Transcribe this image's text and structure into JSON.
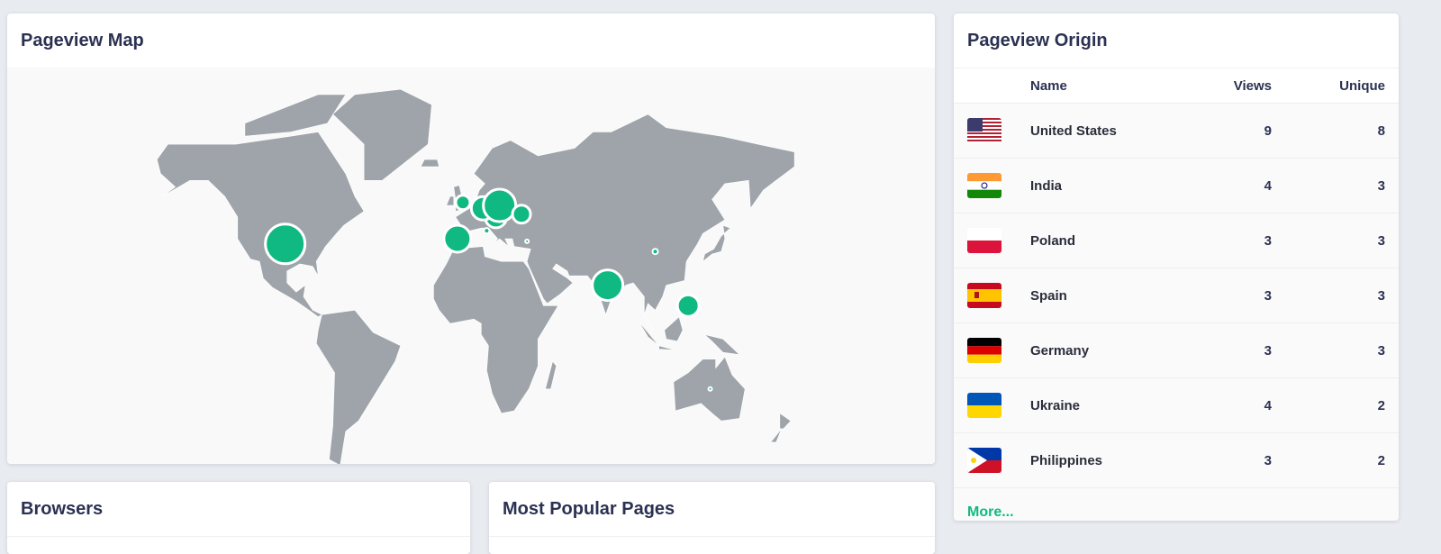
{
  "map": {
    "title": "Pageview Map",
    "land_color": "#9ea4aa",
    "bubble_color": "#10b981",
    "markers": [
      {
        "country": "United States",
        "views": 9
      },
      {
        "country": "India",
        "views": 4
      },
      {
        "country": "Poland",
        "views": 3
      },
      {
        "country": "Spain",
        "views": 3
      },
      {
        "country": "Germany",
        "views": 3
      },
      {
        "country": "Ukraine",
        "views": 4
      },
      {
        "country": "Philippines",
        "views": 3
      },
      {
        "country": "United Kingdom"
      },
      {
        "country": "Czechia"
      },
      {
        "country": "Italy"
      },
      {
        "country": "Turkey"
      },
      {
        "country": "China"
      },
      {
        "country": "Australia"
      }
    ]
  },
  "origin": {
    "title": "Pageview Origin",
    "columns": {
      "name": "Name",
      "views": "Views",
      "unique": "Unique"
    },
    "rows": [
      {
        "flag": "us-flag",
        "name": "United States",
        "views": "9",
        "unique": "8"
      },
      {
        "flag": "in-flag",
        "name": "India",
        "views": "4",
        "unique": "3"
      },
      {
        "flag": "pl-flag",
        "name": "Poland",
        "views": "3",
        "unique": "3"
      },
      {
        "flag": "es-flag",
        "name": "Spain",
        "views": "3",
        "unique": "3"
      },
      {
        "flag": "de-flag",
        "name": "Germany",
        "views": "3",
        "unique": "3"
      },
      {
        "flag": "ua-flag",
        "name": "Ukraine",
        "views": "4",
        "unique": "2"
      },
      {
        "flag": "ph-flag",
        "name": "Philippines",
        "views": "3",
        "unique": "2"
      }
    ],
    "more_label": "More..."
  },
  "browsers": {
    "title": "Browsers"
  },
  "pages": {
    "title": "Most Popular Pages"
  }
}
